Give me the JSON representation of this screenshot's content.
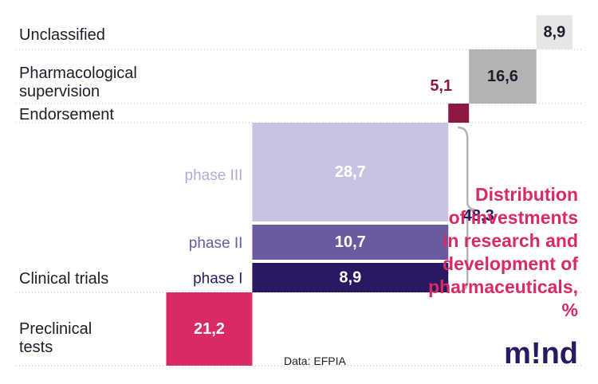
{
  "chart_data": {
    "type": "waterfall",
    "title": [
      "Distribution",
      "of investments",
      "in research and",
      "development of",
      "pharmaceuticals,",
      "%"
    ],
    "source": "Data: EFPIA",
    "logo": "m!nd",
    "categories": [
      {
        "label": [
          "Unclassified"
        ],
        "value": 8.9,
        "value_label": "8,9",
        "color": "#e6e6e6",
        "text_color": "#1d1d2b"
      },
      {
        "label": [
          "Pharmacological",
          "supervision"
        ],
        "value": 16.6,
        "value_label": "16,6",
        "color": "#b3b3b3",
        "text_color": "#1d1d2b"
      },
      {
        "label": [
          "Endorsement"
        ],
        "value": 5.1,
        "value_label": "5,1",
        "color": "#8e1743",
        "text_color": "#8e1743"
      },
      {
        "label": [
          "Clinical trials"
        ],
        "value": 48.3,
        "value_label": "48,3",
        "color": "#2a1863",
        "text_color": "#2a1863",
        "phases": [
          {
            "label": "phase III",
            "value": 28.7,
            "value_label": "28,7",
            "color": "#c9c3e3",
            "label_color": "#b1acd6"
          },
          {
            "label": "phase II",
            "value": 10.7,
            "value_label": "10,7",
            "color": "#6c5aa0",
            "label_color": "#6c5aa0"
          },
          {
            "label": "phase I",
            "value": 8.9,
            "value_label": "8,9",
            "color": "#2a1863",
            "label_color": "#2a1863"
          }
        ]
      },
      {
        "label": [
          "Preclinical",
          "tests"
        ],
        "value": 21.2,
        "value_label": "21,2",
        "color": "#d92a63",
        "text_color": "#ffffff"
      }
    ]
  }
}
